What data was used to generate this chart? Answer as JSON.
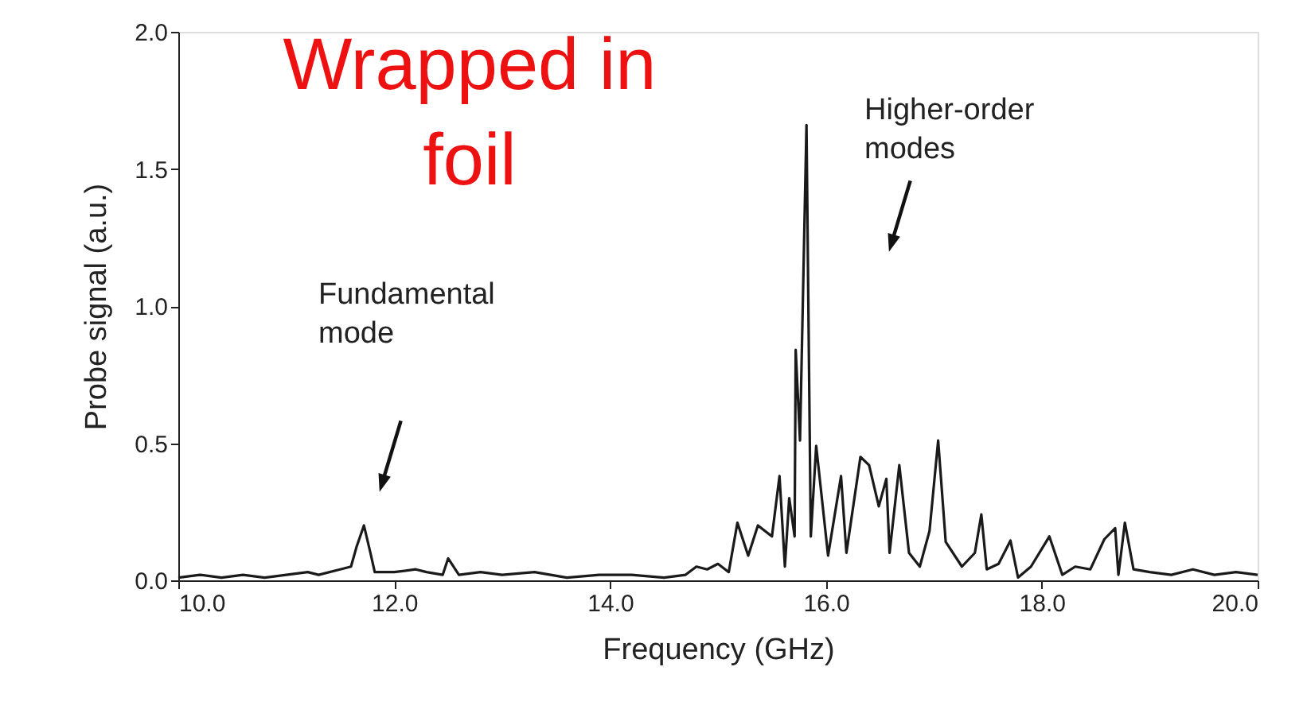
{
  "chart_data": {
    "type": "line",
    "xlabel": "Frequency (GHz)",
    "ylabel": "Probe signal (a.u.)",
    "x": [
      10.0,
      10.2,
      10.4,
      10.6,
      10.8,
      11.0,
      11.2,
      11.3,
      11.5,
      11.6,
      11.65,
      11.72,
      11.78,
      11.82,
      12.0,
      12.2,
      12.3,
      12.45,
      12.5,
      12.6,
      12.8,
      13.0,
      13.3,
      13.6,
      13.9,
      14.2,
      14.5,
      14.7,
      14.8,
      14.9,
      15.0,
      15.1,
      15.18,
      15.28,
      15.37,
      15.5,
      15.57,
      15.62,
      15.66,
      15.71,
      15.72,
      15.76,
      15.82,
      15.86,
      15.91,
      16.02,
      16.14,
      16.19,
      16.32,
      16.4,
      16.49,
      16.56,
      16.59,
      16.68,
      16.77,
      16.87,
      16.96,
      17.04,
      17.11,
      17.26,
      17.38,
      17.44,
      17.49,
      17.6,
      17.71,
      17.78,
      17.9,
      18.07,
      18.19,
      18.31,
      18.45,
      18.58,
      18.68,
      18.71,
      18.77,
      18.85,
      19.0,
      19.2,
      19.4,
      19.6,
      19.8,
      20.0
    ],
    "series": [
      {
        "color": "#1a1a1a",
        "values": [
          0.01,
          0.02,
          0.01,
          0.02,
          0.01,
          0.02,
          0.03,
          0.02,
          0.04,
          0.05,
          0.12,
          0.2,
          0.1,
          0.03,
          0.03,
          0.04,
          0.03,
          0.02,
          0.08,
          0.02,
          0.03,
          0.02,
          0.03,
          0.01,
          0.02,
          0.02,
          0.01,
          0.02,
          0.05,
          0.04,
          0.06,
          0.03,
          0.21,
          0.09,
          0.2,
          0.16,
          0.38,
          0.05,
          0.3,
          0.16,
          0.84,
          0.51,
          1.66,
          0.16,
          0.49,
          0.09,
          0.38,
          0.1,
          0.45,
          0.42,
          0.27,
          0.37,
          0.1,
          0.42,
          0.1,
          0.05,
          0.18,
          0.51,
          0.14,
          0.05,
          0.1,
          0.24,
          0.04,
          0.06,
          0.145,
          0.01,
          0.05,
          0.16,
          0.02,
          0.05,
          0.04,
          0.15,
          0.19,
          0.02,
          0.21,
          0.04,
          0.03,
          0.02,
          0.04,
          0.02,
          0.03,
          0.02
        ]
      }
    ],
    "xlim": [
      10.0,
      20.0
    ],
    "ylim": [
      0.0,
      2.0
    ],
    "xticks": [
      {
        "value": 10,
        "label": "10.0"
      },
      {
        "value": 12,
        "label": "12.0"
      },
      {
        "value": 14,
        "label": "14.0"
      },
      {
        "value": 16,
        "label": "16.0"
      },
      {
        "value": 18,
        "label": "18.0"
      },
      {
        "value": 20,
        "label": "20.0"
      }
    ],
    "yticks": [
      {
        "value": 0,
        "label": "0.0"
      },
      {
        "value": 0.5,
        "label": "0.5"
      },
      {
        "value": 1,
        "label": "1.0"
      },
      {
        "value": 1.5,
        "label": "1.5"
      },
      {
        "value": 2,
        "label": "2.0"
      }
    ],
    "grid": false,
    "marker": "none",
    "line_style": "solid",
    "annotations": [
      "Fundamental\nmode",
      "Higher-order\nmodes",
      "Wrapped in\nfoil"
    ]
  }
}
